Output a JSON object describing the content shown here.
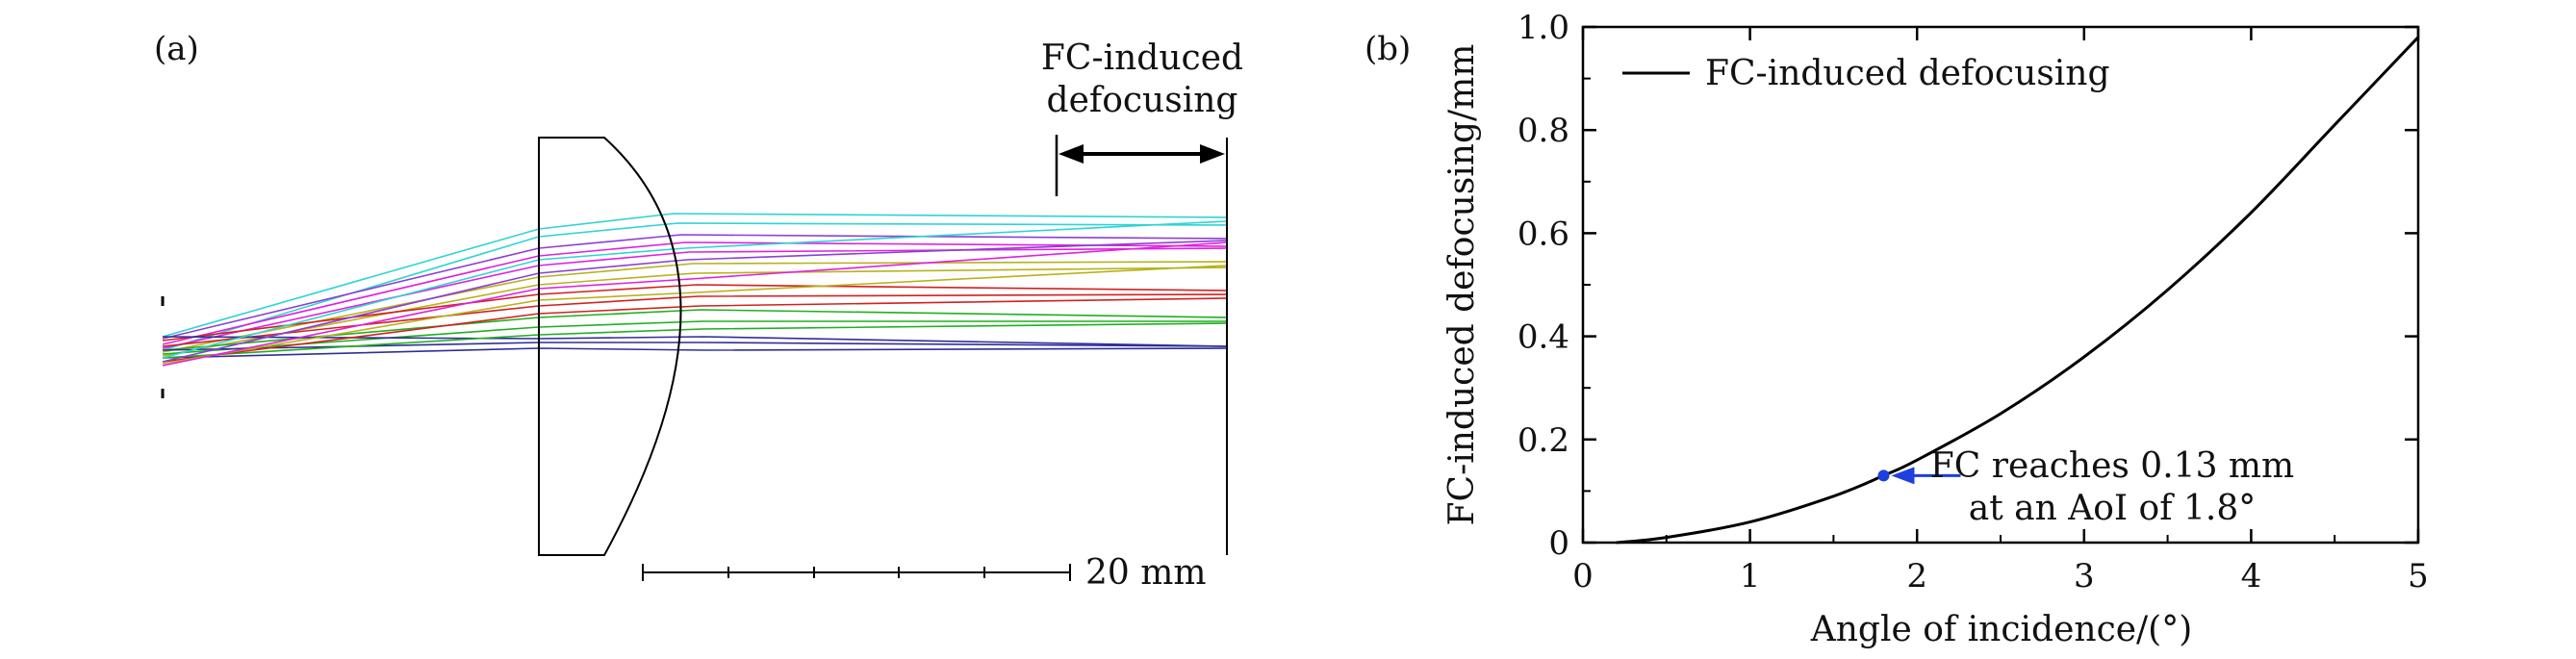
{
  "panel_a": {
    "label": "(a)",
    "annotation_line1": "FC-induced",
    "annotation_line2": "defocusing",
    "scale_bar_label": "20 mm",
    "ray_colors": [
      "#2f2f9a",
      "#1fb01f",
      "#d42020",
      "#b8b21a",
      "#e020e0",
      "#2fd4d4",
      "#8c3fd6"
    ]
  },
  "panel_b": {
    "label": "(b)",
    "callout_line1": "FC reaches 0.13 mm",
    "callout_line2": "at an AoI of 1.8°",
    "marker_color": "#1f3fe0"
  },
  "chart_data": {
    "type": "line",
    "xlabel": "Angle of incidence/(°)",
    "ylabel": "FC-induced defocusing/mm",
    "xlim": [
      0,
      5
    ],
    "ylim": [
      0,
      1.0
    ],
    "xticks": [
      0,
      1,
      2,
      3,
      4,
      5
    ],
    "xtick_labels": [
      "0",
      "1",
      "2",
      "3",
      "4",
      "5"
    ],
    "yticks": [
      0,
      0.2,
      0.4,
      0.6,
      0.8,
      1.0
    ],
    "ytick_labels": [
      "0",
      "0.2",
      "0.4",
      "0.6",
      "0.8",
      "1.0"
    ],
    "grid": false,
    "legend_position": "top-left",
    "series": [
      {
        "name": "FC-induced defocusing",
        "color": "#000000",
        "x": [
          0.2,
          0.5,
          1.0,
          1.5,
          1.8,
          2.0,
          2.5,
          3.0,
          3.5,
          4.0,
          4.5,
          5.0
        ],
        "y": [
          0.0,
          0.01,
          0.04,
          0.09,
          0.13,
          0.16,
          0.25,
          0.36,
          0.49,
          0.64,
          0.81,
          0.98
        ]
      }
    ],
    "highlight_point": {
      "x": 1.8,
      "y": 0.13
    }
  }
}
